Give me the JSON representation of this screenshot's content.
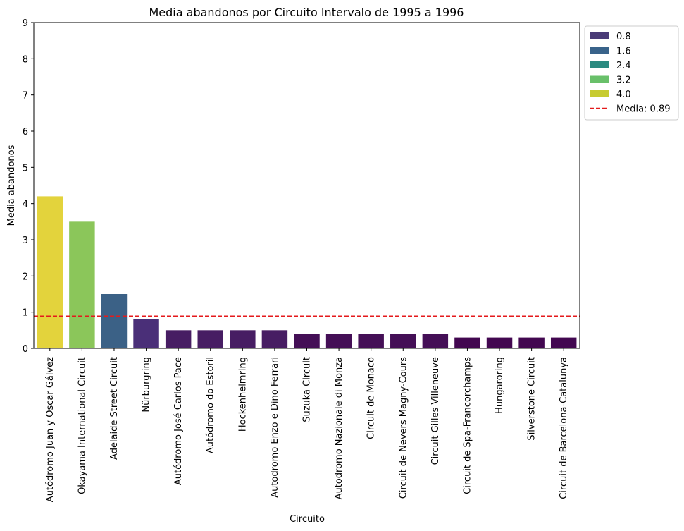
{
  "chart_data": {
    "type": "bar",
    "title": "Media abandonos por Circuito Intervalo de 1995 a 1996",
    "xlabel": "Circuito",
    "ylabel": "Media abandonos",
    "ylim": [
      0,
      9
    ],
    "yticks": [
      "0",
      "1",
      "2",
      "3",
      "4",
      "5",
      "6",
      "7",
      "8",
      "9"
    ],
    "grid": false,
    "categories": [
      "Autódromo Juan y Oscar Gálvez",
      "Okayama International Circuit",
      "Adelaide Street Circuit",
      "Nürburgring",
      "Autódromo José Carlos Pace",
      "Autódromo do Estoril",
      "Hockenheimring",
      "Autodromo Enzo e Dino Ferrari",
      "Suzuka Circuit",
      "Autodromo Nazionale di Monza",
      "Circuit de Monaco",
      "Circuit de Nevers Magny-Cours",
      "Circuit Gilles Villeneuve",
      "Circuit de Spa-Francorchamps",
      "Hungaroring",
      "Silverstone Circuit",
      "Circuit de Barcelona-Catalunya"
    ],
    "values": [
      4.2,
      3.5,
      1.5,
      0.8,
      0.5,
      0.5,
      0.5,
      0.5,
      0.4,
      0.4,
      0.4,
      0.4,
      0.4,
      0.3,
      0.3,
      0.3,
      0.3
    ],
    "bar_colors": [
      "#e3d33c",
      "#8bc65a",
      "#3b6186",
      "#4a2f78",
      "#471d63",
      "#471d63",
      "#471d63",
      "#471d63",
      "#440f56",
      "#440f56",
      "#440f56",
      "#440f56",
      "#440f56",
      "#420750",
      "#420750",
      "#420750",
      "#420750"
    ],
    "mean_line": {
      "value": 0.89,
      "color": "#e41a1c",
      "label": "Media: 0.89"
    },
    "legend": {
      "position": "outside-top-right",
      "entries": [
        {
          "label": "0.8",
          "color": "#4a3b77"
        },
        {
          "label": "1.6",
          "color": "#39638a"
        },
        {
          "label": "2.4",
          "color": "#2a8a80"
        },
        {
          "label": "3.2",
          "color": "#69c06a"
        },
        {
          "label": "4.0",
          "color": "#c7cb30"
        }
      ]
    }
  }
}
